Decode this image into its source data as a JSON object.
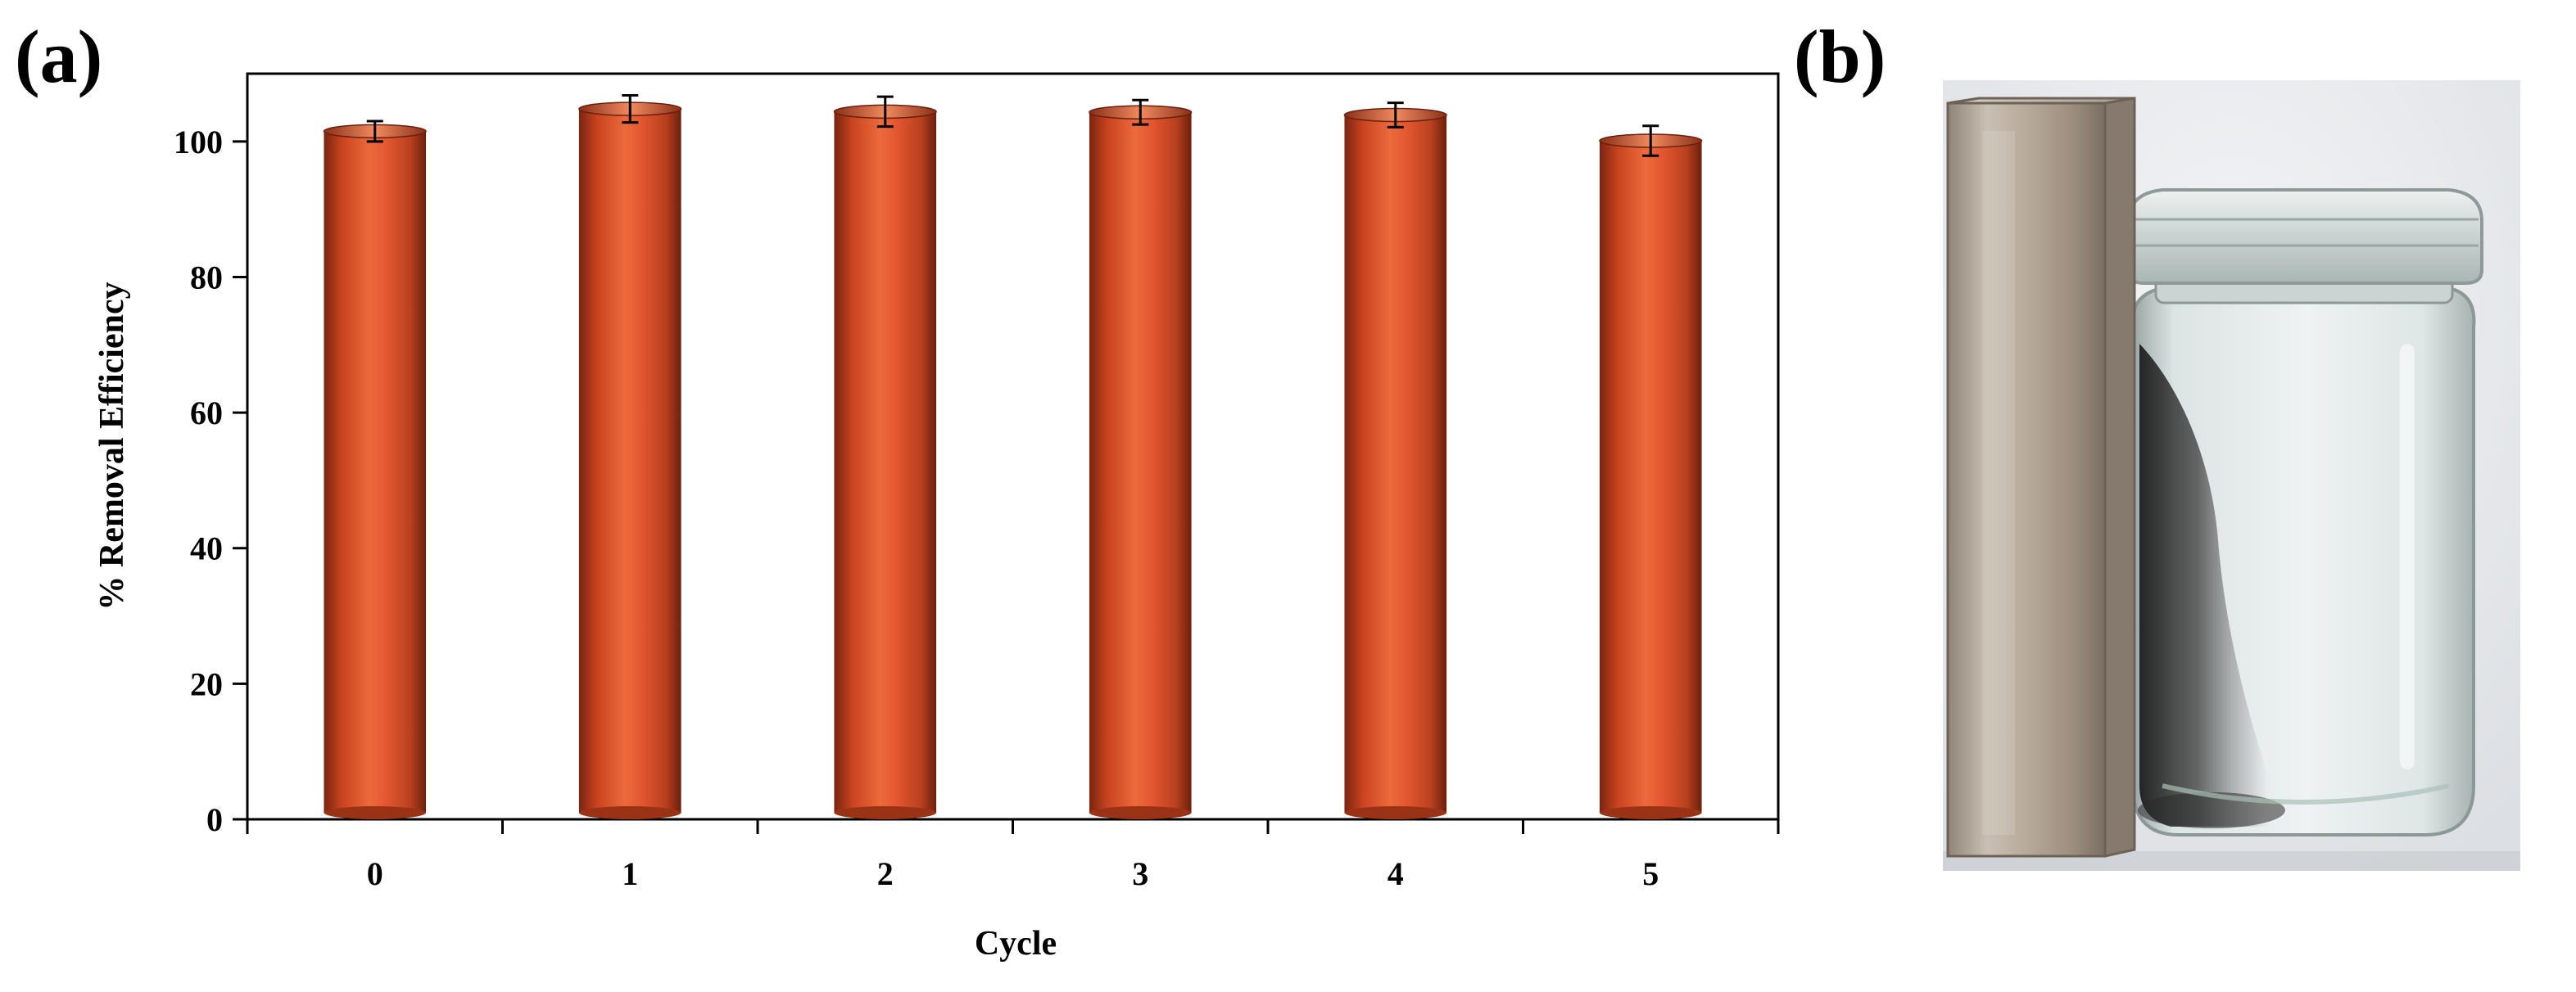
{
  "panels": {
    "a_label": "(a)",
    "b_label": "(b)"
  },
  "chart_data": {
    "type": "bar",
    "categories": [
      "0",
      "1",
      "2",
      "3",
      "4",
      "5"
    ],
    "values": [
      101.5,
      104.8,
      104.4,
      104.3,
      103.9,
      100.1
    ],
    "errors": [
      1.5,
      2.0,
      2.2,
      1.8,
      1.8,
      2.2
    ],
    "title": "",
    "xlabel": "Cycle",
    "ylabel": "% Removal Efficiency",
    "ylim": [
      0,
      110
    ],
    "yticks": [
      0,
      20,
      40,
      60,
      80,
      100
    ],
    "grid": false,
    "colors": {
      "bar": "#e2562f",
      "bar_dark": "#7a2410",
      "bar_light": "#f07a4f"
    }
  },
  "photo": {
    "subject": "magnet-and-jar",
    "colors": {
      "background": "#e9ebee",
      "magnet": "#b8aea0",
      "jar_glass": "#dfe6e6",
      "particles": "#2b2b2b"
    }
  }
}
